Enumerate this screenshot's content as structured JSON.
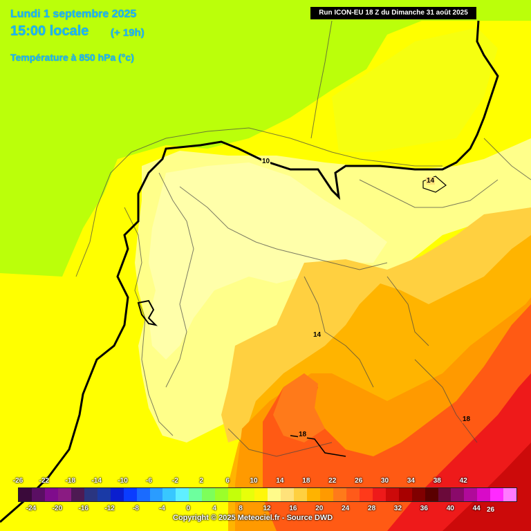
{
  "header": {
    "date": "Lundi 1 septembre 2025",
    "time": "15:00 locale",
    "offset": "(+ 19h)",
    "parameter": "Température à 850 hPa (°c)",
    "run": "Run ICON-EU 18 Z du Dimanche 31 août 2025"
  },
  "isotherm_labels": [
    "10",
    "14",
    "14",
    "18",
    "18",
    "26"
  ],
  "legend": {
    "top_ticks": [
      "-26",
      "-22",
      "-18",
      "-14",
      "-10",
      "-6",
      "-2",
      "2",
      "6",
      "10",
      "14",
      "18",
      "22",
      "26",
      "30",
      "34",
      "38",
      "42"
    ],
    "bottom_ticks": [
      "-24",
      "-20",
      "-16",
      "-12",
      "-8",
      "-4",
      "0",
      "4",
      "8",
      "12",
      "16",
      "20",
      "24",
      "28",
      "32",
      "36",
      "40",
      "44"
    ],
    "colors": [
      "#3a0a3a",
      "#5a0f63",
      "#7f0c8c",
      "#8a1b82",
      "#4d1a53",
      "#2a3580",
      "#1a3aa6",
      "#0a1ecf",
      "#0a3cff",
      "#1a6bff",
      "#2a9cff",
      "#38c7ff",
      "#5fefff",
      "#6dff9e",
      "#7dff5a",
      "#9bff2a",
      "#c4ff0a",
      "#e8ff0a",
      "#fff70a",
      "#fffb8a",
      "#ffe27a",
      "#ffd040",
      "#ffb300",
      "#ff9a00",
      "#ff7a1a",
      "#ff5a1a",
      "#ff3a1a",
      "#ee1a1a",
      "#cc0a0a",
      "#a80000",
      "#800000",
      "#5a0000",
      "#6b0a3a",
      "#8a0a6a",
      "#b00a9a",
      "#d80ac8",
      "#ff2aff",
      "#ff7aff"
    ],
    "copyright": "Copyright © 2025 Meteociel.fr - Source DWD"
  },
  "colors": {
    "atlantic_green": "#bbff0a",
    "yellow": "#ffff00",
    "pale_yellow": "#ffff8a",
    "cream": "#ffffaa",
    "orange": "#ffb400",
    "red_orange": "#ff5a14",
    "red": "#ee1a1a",
    "header_text": "#19b7ff"
  }
}
